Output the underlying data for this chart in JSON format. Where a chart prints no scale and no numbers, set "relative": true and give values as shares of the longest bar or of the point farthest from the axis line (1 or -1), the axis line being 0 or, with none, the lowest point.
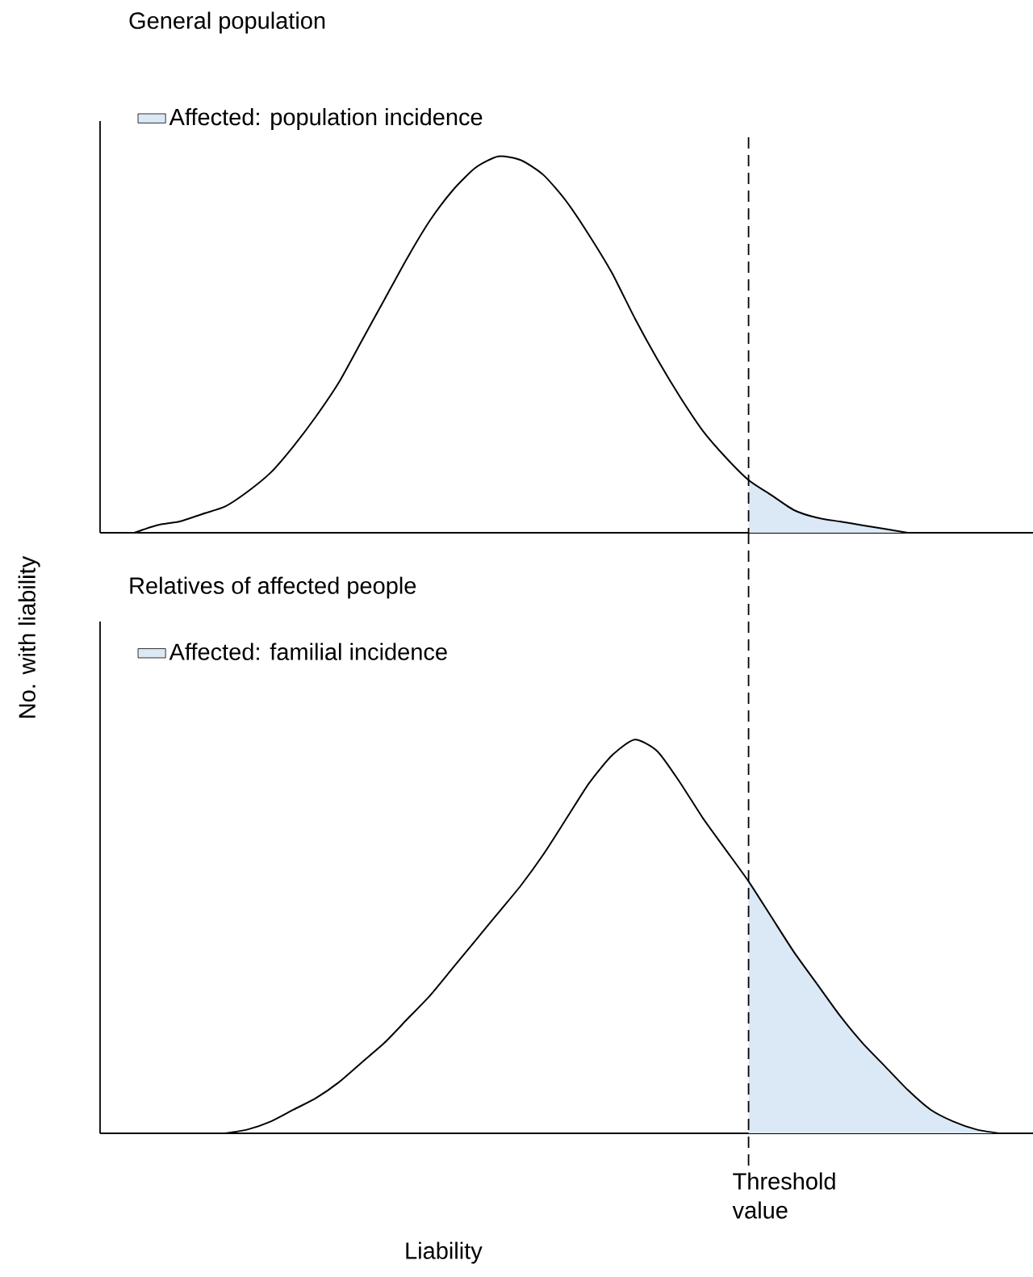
{
  "chart_data": [
    {
      "type": "line",
      "title": "General population",
      "ylabel": "No. with liability",
      "relative": true,
      "legend": "top left",
      "categories": [
        null,
        null,
        null,
        null,
        null,
        null,
        null,
        null,
        null,
        null,
        null,
        null,
        null,
        null,
        null,
        null,
        null,
        null,
        null,
        null,
        null,
        null,
        null,
        null,
        null,
        null,
        null,
        null,
        null,
        null,
        null,
        null,
        null,
        null,
        null,
        null,
        null,
        null,
        null,
        null,
        null
      ],
      "series": [
        {
          "color": "#000000",
          "values": [
            null,
            0,
            0.02,
            0.03,
            0.05,
            0.07,
            0.11,
            0.16,
            0.23,
            0.31,
            0.4,
            0.51,
            0.62,
            0.73,
            0.83,
            0.91,
            0.97,
            1.0,
            0.99,
            0.95,
            0.88,
            0.79,
            0.69,
            0.57,
            0.46,
            0.36,
            0.27,
            0.2,
            0.14,
            0.1,
            0.06,
            0.04,
            0.03,
            0.02,
            0.01,
            0,
            null,
            null,
            null,
            null,
            null
          ]
        },
        {
          "type": "area",
          "name": "Affected: population incidence",
          "color": "#dbe8f5",
          "values": [
            null,
            null,
            null,
            null,
            null,
            null,
            null,
            null,
            null,
            null,
            null,
            null,
            null,
            null,
            null,
            null,
            null,
            null,
            null,
            null,
            null,
            null,
            null,
            null,
            null,
            null,
            null,
            null,
            0.14,
            0.1,
            0.06,
            0.04,
            0.03,
            0.02,
            0.01,
            0,
            null,
            null,
            null,
            null,
            null
          ]
        }
      ],
      "legend_title": null
    },
    {
      "type": "line",
      "title": "Relatives of affected people",
      "xlabel": "Liability",
      "relative": true,
      "legend": "top left",
      "categories": [
        null,
        null,
        null,
        null,
        null,
        null,
        null,
        null,
        null,
        null,
        null,
        null,
        null,
        null,
        null,
        null,
        null,
        null,
        null,
        null,
        null,
        null,
        null,
        null,
        null,
        null,
        null,
        null,
        null,
        null,
        null,
        null,
        null,
        null,
        null,
        null,
        null,
        null,
        null,
        null,
        null
      ],
      "series": [
        {
          "color": "#000000",
          "values": [
            null,
            null,
            null,
            null,
            null,
            0,
            0.01,
            0.03,
            0.06,
            0.09,
            0.13,
            0.18,
            0.23,
            0.29,
            0.35,
            0.42,
            0.49,
            0.56,
            0.63,
            0.71,
            0.8,
            0.89,
            0.96,
            1.0,
            0.97,
            0.89,
            0.8,
            0.72,
            0.64,
            0.55,
            0.46,
            0.38,
            0.3,
            0.23,
            0.17,
            0.11,
            0.06,
            0.03,
            0.01,
            0,
            null
          ]
        },
        {
          "type": "area",
          "name": "Affected: familial incidence",
          "color": "#dbe8f5",
          "values": [
            null,
            null,
            null,
            null,
            null,
            null,
            null,
            null,
            null,
            null,
            null,
            null,
            null,
            null,
            null,
            null,
            null,
            null,
            null,
            null,
            null,
            null,
            null,
            null,
            null,
            null,
            null,
            null,
            0.64,
            0.55,
            0.46,
            0.38,
            0.3,
            0.23,
            0.17,
            0.11,
            0.06,
            0.03,
            0.01,
            0,
            null
          ]
        }
      ],
      "annotations": [
        "Threshold value"
      ]
    }
  ]
}
